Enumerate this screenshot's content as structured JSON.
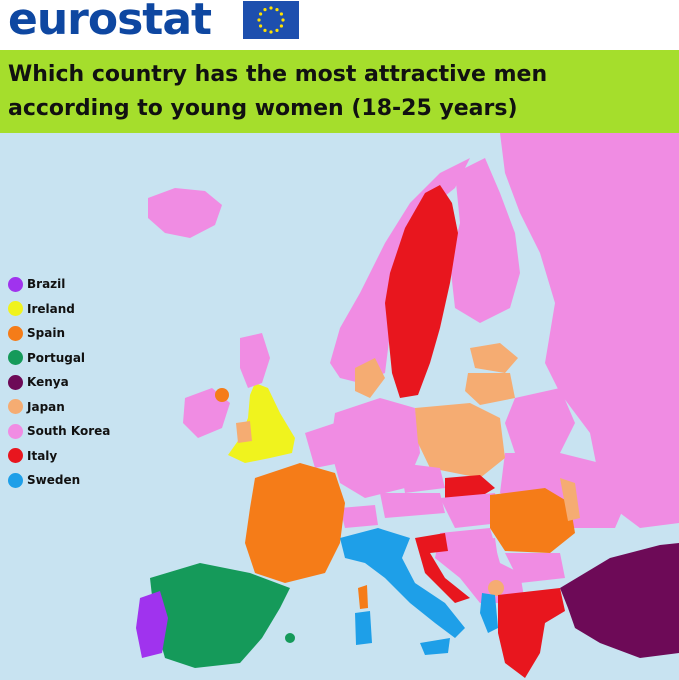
{
  "header": {
    "logo_text": "eurostat",
    "flag_icon": "eu-flag-icon"
  },
  "title": "Which country has the most attractive men according to young women (18-25 years)",
  "colors": {
    "sea": "#c8e3f1",
    "title_band": "#a5de2c",
    "logo": "#0e47a1"
  },
  "legend": [
    {
      "label": "Brazil",
      "color": "#a033ee"
    },
    {
      "label": "Ireland",
      "color": "#f0f31e"
    },
    {
      "label": "Spain",
      "color": "#f57c18"
    },
    {
      "label": "Portugal",
      "color": "#159a5a"
    },
    {
      "label": "Kenya",
      "color": "#6d0a57"
    },
    {
      "label": "Japan",
      "color": "#f5ac72"
    },
    {
      "label": "South Korea",
      "color": "#f08ce3"
    },
    {
      "label": "Italy",
      "color": "#e8161e"
    },
    {
      "label": "Sweden",
      "color": "#1e9fe8"
    }
  ]
}
